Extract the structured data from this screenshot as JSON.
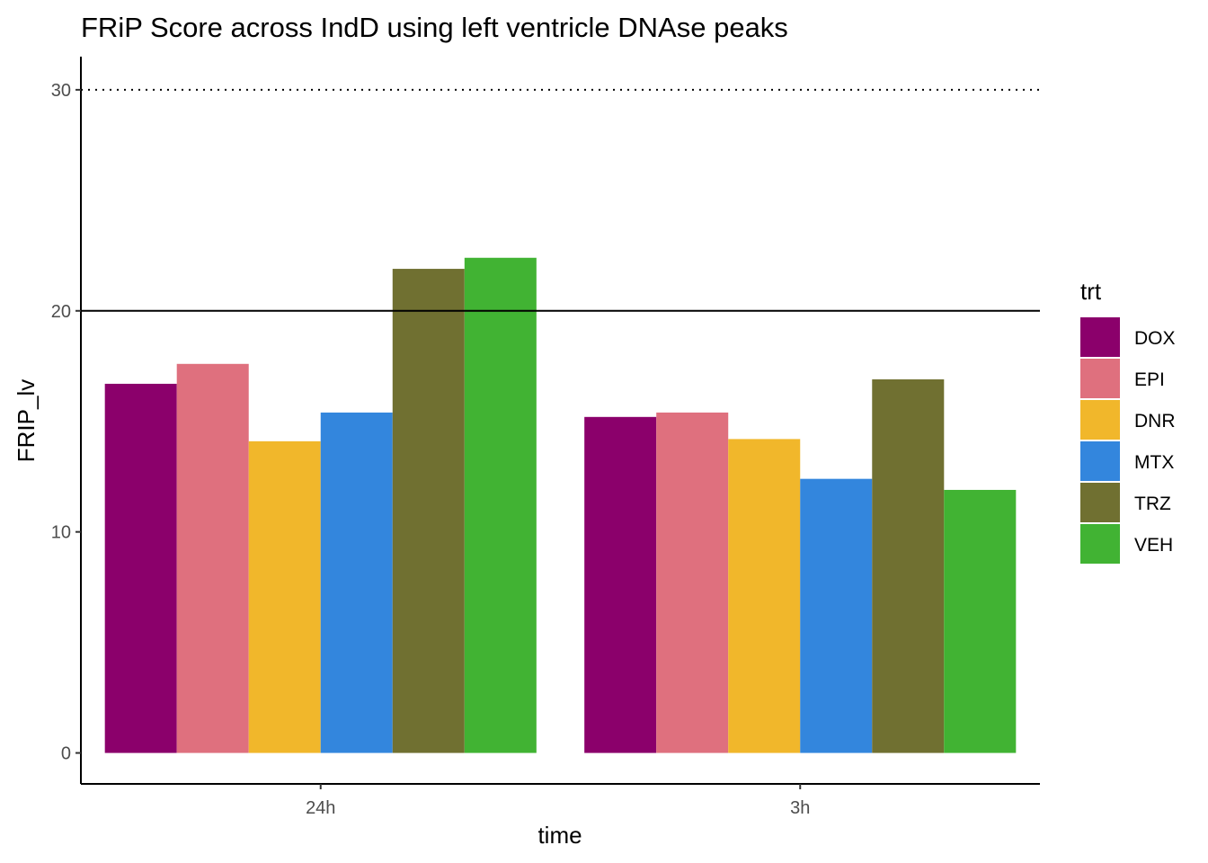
{
  "chart_data": {
    "type": "bar",
    "title": "FRiP Score across IndD using left ventricle DNAse peaks",
    "xlabel": "time",
    "ylabel": "FRIP_lv",
    "categories": [
      "24h",
      "3h"
    ],
    "ylim": [
      -1.4,
      31.5
    ],
    "yticks": [
      0,
      10,
      20,
      30
    ],
    "grid": false,
    "reference_lines": [
      {
        "y": 30,
        "style": "dotted"
      },
      {
        "y": 20,
        "style": "solid"
      }
    ],
    "legend": {
      "title": "trt",
      "position": "right"
    },
    "series": [
      {
        "name": "DOX",
        "color": "#8B006B",
        "values": [
          16.7,
          15.2
        ]
      },
      {
        "name": "EPI",
        "color": "#DF707E",
        "values": [
          17.6,
          15.4
        ]
      },
      {
        "name": "DNR",
        "color": "#F1B72B",
        "values": [
          14.1,
          14.2
        ]
      },
      {
        "name": "MTX",
        "color": "#3386DD",
        "values": [
          15.4,
          12.4
        ]
      },
      {
        "name": "TRZ",
        "color": "#707031",
        "values": [
          21.9,
          16.9
        ]
      },
      {
        "name": "VEH",
        "color": "#41B333",
        "values": [
          22.4,
          11.9
        ]
      }
    ]
  }
}
